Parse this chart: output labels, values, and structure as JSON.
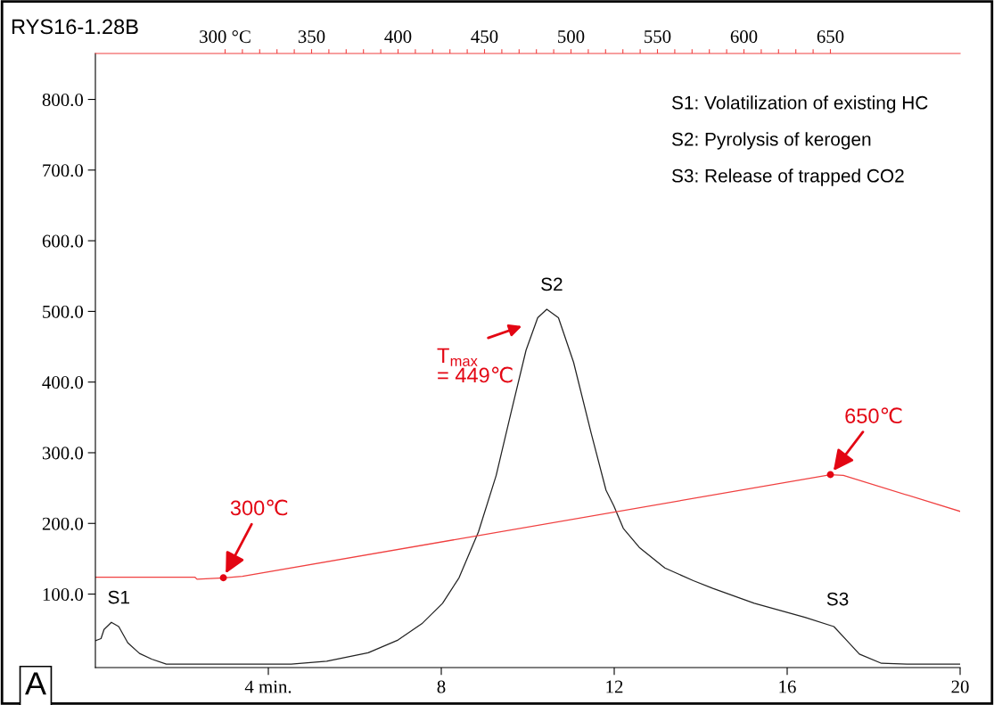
{
  "chart_data": {
    "type": "line",
    "title": "RYS16-1.28B",
    "xlim": [
      0,
      20
    ],
    "xticks": [
      {
        "value": 4,
        "label": "4 min."
      },
      8,
      12,
      16,
      20
    ],
    "ylim": [
      -4,
      865
    ],
    "yticks": [
      {
        "value": 100,
        "label": "100.0"
      },
      {
        "value": 200,
        "label": "200.0"
      },
      {
        "value": 300,
        "label": "300.0"
      },
      {
        "value": 400,
        "label": "400.0"
      },
      {
        "value": 500,
        "label": "500.0"
      },
      {
        "value": 600,
        "label": "600.0"
      },
      {
        "value": 700,
        "label": "700.0"
      },
      {
        "value": 800,
        "label": "800.0"
      }
    ],
    "x2lim": [
      225,
      725
    ],
    "x2ticks": [
      {
        "value": 300,
        "label": "300 °C"
      },
      {
        "value": 310,
        "label": null
      },
      {
        "value": 320,
        "label": null
      },
      {
        "value": 330,
        "label": null
      },
      {
        "value": 340,
        "label": null
      },
      350,
      {
        "value": 360,
        "label": null
      },
      {
        "value": 370,
        "label": null
      },
      {
        "value": 380,
        "label": null
      },
      {
        "value": 390,
        "label": null
      },
      400,
      {
        "value": 410,
        "label": null
      },
      {
        "value": 420,
        "label": null
      },
      {
        "value": 430,
        "label": null
      },
      {
        "value": 440,
        "label": null
      },
      450,
      {
        "value": 460,
        "label": null
      },
      {
        "value": 470,
        "label": null
      },
      {
        "value": 480,
        "label": null
      },
      {
        "value": 490,
        "label": null
      },
      500,
      {
        "value": 510,
        "label": null
      },
      {
        "value": 520,
        "label": null
      },
      {
        "value": 530,
        "label": null
      },
      {
        "value": 540,
        "label": null
      },
      550,
      {
        "value": 560,
        "label": null
      },
      {
        "value": 570,
        "label": null
      },
      {
        "value": 580,
        "label": null
      },
      {
        "value": 590,
        "label": null
      },
      600,
      {
        "value": 610,
        "label": null
      },
      {
        "value": 620,
        "label": null
      },
      {
        "value": 630,
        "label": null
      },
      {
        "value": 640,
        "label": null
      },
      650
    ],
    "grid": false,
    "series": [
      {
        "color": "#222222",
        "x": [
          0,
          0.13,
          0.2,
          0.37,
          0.54,
          0.75,
          1.02,
          1.3,
          1.64,
          4.53,
          5.35,
          6.31,
          7.0,
          7.55,
          8.03,
          8.41,
          8.86,
          9.27,
          9.61,
          9.96,
          10.23,
          10.44,
          10.71,
          11.06,
          11.47,
          11.81,
          11.99,
          12.21,
          12.58,
          13.17,
          13.83,
          14.28,
          15.24,
          16.41,
          17.08,
          17.37,
          17.67,
          18.18,
          18.77,
          20
        ],
        "values": [
          34,
          37,
          50,
          60,
          54,
          31,
          16,
          8,
          1,
          1,
          5,
          17,
          35,
          58,
          87,
          123,
          188,
          268,
          356,
          445,
          491,
          503,
          491,
          428,
          327,
          247,
          225,
          193,
          166,
          137,
          119,
          108,
          87,
          67,
          54,
          35,
          15,
          2,
          1,
          1
        ]
      },
      {
        "color": "#f04040",
        "x": [
          0,
          2.3,
          2.35,
          2.96,
          3.4,
          17.0,
          17.3,
          20
        ],
        "values": [
          124,
          124,
          121,
          123,
          125,
          269,
          268,
          217
        ]
      },
      {
        "type": "scatter",
        "color": "#e30613",
        "marker": "circle",
        "x": [
          2.96,
          17.0
        ],
        "values": [
          123,
          269
        ]
      }
    ],
    "annotations": [
      "S1: Volatilization of existing HC",
      "S2: Pyrolysis of kerogen",
      "S3: Release of trapped CO2",
      {
        "text": "S1",
        "x": 0.37,
        "y": 60
      },
      {
        "text": "S2",
        "x": 10.44,
        "y": 503
      },
      {
        "text": "S3",
        "x": 17.08,
        "y": 54
      },
      {
        "text": "300℃",
        "x": 2.96,
        "y": 123
      },
      {
        "text": "650℃",
        "x": 17.0,
        "y": 269
      },
      "T$_{max}$\n= 449℃",
      "A"
    ]
  }
}
